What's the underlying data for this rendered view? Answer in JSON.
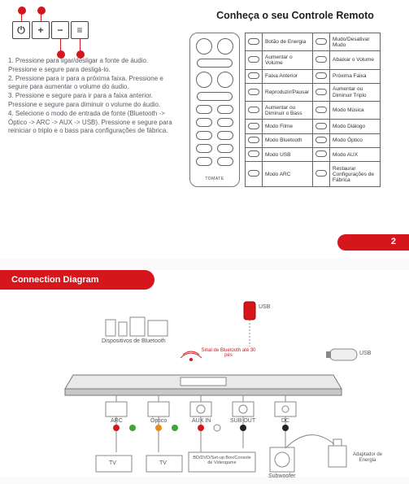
{
  "page1": {
    "title": "Conheça o seu Controle Remoto",
    "button_row": [
      {
        "id": 1,
        "icon": "power",
        "glyph": "⏻"
      },
      {
        "id": 2,
        "icon": "plus",
        "glyph": "+"
      },
      {
        "id": 3,
        "icon": "minus",
        "glyph": "−"
      },
      {
        "id": 4,
        "icon": "source",
        "glyph": "≡"
      }
    ],
    "marker_color": "#d5171d",
    "instructions": [
      "1. Pressione para ligar/desligar a fonte de áudio. Pressione e segure para desligá-lo.",
      "2. Pressione para ir para a próxima faixa. Pressione e segure para aumentar o volume do áudio.",
      "3. Pressione e segure para ir para a faixa anterior. Pressione e segure para diminuir o volume do áudio.",
      "4. Selecione o modo de entrada de fonte (Bluetooth -> Óptico -> ARC -> AUX -> USB). Pressione e segure para reiniciar o triplo e o bass para configurações de fábrica."
    ],
    "remote_brand": "TOMATE",
    "modes_table": [
      [
        {
          "icon": "⏻",
          "label": "Botão de Energia"
        },
        {
          "icon": "🔇",
          "label": "Mudo/Desativar Mudo"
        }
      ],
      [
        {
          "icon": "▲",
          "label": "Aumentar o Volume"
        },
        {
          "icon": "▼",
          "label": "Abaixar o Volume"
        }
      ],
      [
        {
          "icon": "◀",
          "label": "Faixa Anterior"
        },
        {
          "icon": "▶",
          "label": "Próxima Faixa"
        }
      ],
      [
        {
          "icon": "▶∥",
          "label": "Reproduzir/Pausar"
        },
        {
          "icon": "T+",
          "label": "Aumentar ou Diminuir Triplo"
        }
      ],
      [
        {
          "icon": "B+",
          "label": "Aumentar ou Diminuir o Bass"
        },
        {
          "icon": "♪",
          "label": "Modo Música"
        }
      ],
      [
        {
          "icon": "🎬",
          "label": "Modo Filme"
        },
        {
          "icon": "💬",
          "label": "Modo Diálogo"
        }
      ],
      [
        {
          "icon": "BT",
          "label": "Modo Bluetooth"
        },
        {
          "icon": "OPT",
          "label": "Modo Óptico"
        }
      ],
      [
        {
          "icon": "USB",
          "label": "Modo USB"
        },
        {
          "icon": "AUX",
          "label": "Modo AUX"
        }
      ],
      [
        {
          "icon": "ARC",
          "label": "Modo ARC"
        },
        {
          "icon": "RST",
          "label": "Restaurar Configurações de Fábrica"
        }
      ]
    ],
    "page_number": "2"
  },
  "page2": {
    "header": "Connection Diagram",
    "labels": {
      "usb_top": "USB",
      "usb_side": "USB",
      "bt_devices": "Dispositivos de Bluetooth",
      "bt_signal": "Sinal de Bluetooth até 30 pés",
      "arc": "ARC",
      "optico": "Óptico",
      "auxin": "AUX IN",
      "subout": "SUB OUT",
      "dc": "DC",
      "tv": "TV",
      "tv2": "TV",
      "console": "BD/DVD/Set-up Box/Console de Videogame",
      "subwoofer": "Subwoofer",
      "adapter": "Adaptador de Energia"
    },
    "colors": {
      "red": "#d5171d",
      "green": "#3fa536",
      "orange": "#e88b1a",
      "grey": "#888888",
      "black": "#222222"
    }
  }
}
